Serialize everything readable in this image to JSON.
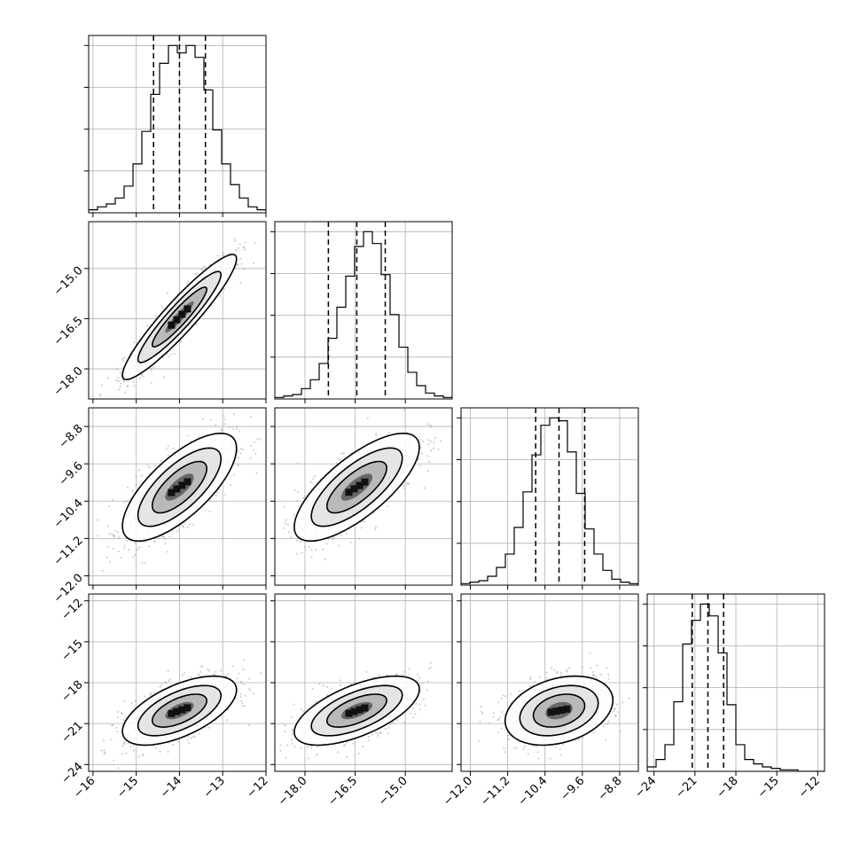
{
  "chart_data": {
    "type": "corner",
    "title": "",
    "parameters": [
      "",
      "",
      "",
      ""
    ],
    "ranges": [
      [
        -16.1,
        -12.0
      ],
      [
        -18.9,
        -13.6
      ],
      [
        -12.2,
        -8.4
      ],
      [
        -24.5,
        -11.5
      ]
    ],
    "ticks": [
      [
        -16,
        -15,
        -14,
        -13,
        -12
      ],
      [
        -18.0,
        -16.5,
        -15.0
      ],
      [
        -12.0,
        -11.2,
        -10.4,
        -9.6,
        -8.8
      ],
      [
        -24,
        -21,
        -18,
        -15,
        -12
      ]
    ],
    "tick_labels": [
      [
        "−16",
        "−15",
        "−14",
        "−13",
        "−12"
      ],
      [
        "−18.0",
        "−16.5",
        "−15.0"
      ],
      [
        "−12.0",
        "−11.2",
        "−10.4",
        "−9.6",
        "−8.8"
      ],
      [
        "−24",
        "−21",
        "−18",
        "−15",
        "−12"
      ]
    ],
    "quantiles": [
      [
        -14.6,
        -14.0,
        -13.4
      ],
      [
        -17.3,
        -16.45,
        -15.6
      ],
      [
        -10.6,
        -10.1,
        -9.55
      ],
      [
        -21.2,
        -20.05,
        -18.9
      ]
    ],
    "histograms": [
      [
        2,
        4,
        6,
        10,
        18,
        33,
        55,
        80,
        101,
        113,
        108,
        113,
        105,
        83,
        56,
        33,
        19,
        10,
        4,
        2
      ],
      [
        1,
        2,
        3,
        7,
        13,
        24,
        41,
        62,
        83,
        103,
        113,
        105,
        84,
        57,
        35,
        18,
        9,
        4,
        2,
        1
      ],
      [
        1,
        2,
        3,
        6,
        12,
        21,
        39,
        63,
        88,
        108,
        113,
        111,
        90,
        62,
        38,
        21,
        10,
        4,
        2,
        1
      ],
      [
        3,
        8,
        18,
        47,
        86,
        102,
        113,
        105,
        80,
        45,
        18,
        8,
        5,
        3,
        2,
        1,
        1,
        0,
        0,
        0
      ]
    ],
    "correlations": {
      "1-0": 0.93,
      "2-0": 0.72,
      "2-1": 0.74,
      "3-0": 0.6,
      "3-1": 0.62,
      "3-2": 0.3
    },
    "grid": true
  }
}
